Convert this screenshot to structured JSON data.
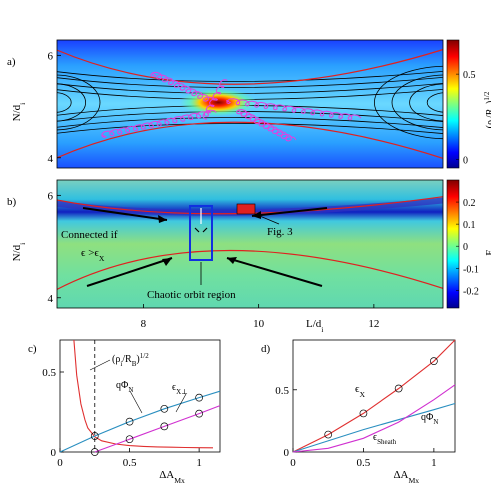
{
  "chart_data": [
    {
      "panel": "a)",
      "type": "heatmap",
      "ylabel": "N/d",
      "ylabel_sub": "i",
      "y_ticks": [
        "6",
        "4"
      ],
      "y_tick_values": [
        6,
        4
      ],
      "ylim": [
        3.8,
        6.3
      ],
      "xlim": [
        6.5,
        13.2
      ],
      "colorbar": {
        "label": "(ρ/R)",
        "label_parts": [
          "(ρ",
          "i",
          "/R",
          "B",
          ")",
          "1/2"
        ],
        "ticks": [
          "0.5",
          "0"
        ],
        "tick_values": [
          0.5,
          0
        ],
        "range": [
          -0.05,
          0.7
        ]
      },
      "overlays": [
        "magnetic field lines (black)",
        "separatrix (red)",
        "particle orbits (magenta)"
      ]
    },
    {
      "panel": "b)",
      "type": "heatmap",
      "ylabel": "N/d",
      "ylabel_sub": "i",
      "y_ticks": [
        "6",
        "4"
      ],
      "y_tick_values": [
        6,
        4
      ],
      "xlabel": "L/d",
      "xlabel_sub": "i",
      "x_ticks": [
        "8",
        "10",
        "12"
      ],
      "x_tick_values": [
        8,
        10,
        12
      ],
      "xlim": [
        6.5,
        13.2
      ],
      "ylim": [
        3.8,
        6.3
      ],
      "colorbar": {
        "label": "E",
        "label_sub": "N",
        "ticks": [
          "0.2",
          "0.1",
          "0",
          "-0.1",
          "-0.2"
        ],
        "tick_values": [
          0.2,
          0.1,
          0,
          -0.1,
          -0.2
        ],
        "range": [
          -0.28,
          0.3
        ]
      },
      "annotations": [
        {
          "text": "Connected if",
          "x": 7.4,
          "y": 5.55
        },
        {
          "text": "Fig. 3",
          "x": 10.1,
          "y": 5.4
        },
        {
          "text": "Chaotic orbit region",
          "x": 8.8,
          "y": 4.1
        }
      ],
      "annotation_math": {
        "eps": "ϵ",
        "gt": " >",
        "sub_x": "X"
      }
    },
    {
      "panel": "c)",
      "type": "line",
      "xlabel": "ΔA",
      "xlabel_sub": "Mx",
      "x_ticks": [
        "0",
        "0.5",
        "1"
      ],
      "x_tick_values": [
        0,
        0.5,
        1
      ],
      "y_ticks": [
        "0",
        "0.5"
      ],
      "y_tick_values": [
        0,
        0.5
      ],
      "xlim": [
        0,
        1.15
      ],
      "ylim": [
        0,
        0.7
      ],
      "series": [
        {
          "name": "(ρ/R)",
          "label_parts": [
            "(ρ",
            "i",
            "/R",
            "B",
            ")",
            "1/2"
          ],
          "color": "#e03030",
          "x": [
            0.1,
            0.12,
            0.15,
            0.18,
            0.2,
            0.25,
            0.3,
            0.4,
            0.5,
            0.6,
            0.7,
            0.8,
            0.9,
            1.0,
            1.1
          ],
          "y": [
            0.7,
            0.48,
            0.3,
            0.2,
            0.15,
            0.095,
            0.07,
            0.05,
            0.04,
            0.035,
            0.032,
            0.03,
            0.028,
            0.027,
            0.026
          ]
        },
        {
          "name": "qΦ",
          "label_parts": [
            "qΦ",
            "N"
          ],
          "color": "#2a8fc0",
          "markers": [
            0.25,
            0.5,
            0.75,
            1.0
          ],
          "x": [
            0,
            0.25,
            0.5,
            0.75,
            1.0,
            1.15
          ],
          "y": [
            0,
            0.1,
            0.19,
            0.27,
            0.34,
            0.38
          ]
        },
        {
          "name": "ϵ",
          "label_parts": [
            "ϵ",
            "X⊥"
          ],
          "color": "#d030d0",
          "markers": [
            0.25,
            0.5,
            0.75,
            1.0
          ],
          "x": [
            0.25,
            0.5,
            0.75,
            1.0,
            1.15
          ],
          "y": [
            0.0,
            0.08,
            0.16,
            0.24,
            0.29
          ]
        }
      ],
      "dashed_vline": 0.25
    },
    {
      "panel": "d)",
      "type": "line",
      "xlabel": "ΔA",
      "xlabel_sub": "Mx",
      "x_ticks": [
        "0",
        "0.5",
        "1"
      ],
      "x_tick_values": [
        0,
        0.5,
        1
      ],
      "y_ticks": [
        "0",
        "0.5"
      ],
      "y_tick_values": [
        0,
        0.5
      ],
      "xlim": [
        0,
        1.15
      ],
      "ylim": [
        0,
        0.9
      ],
      "series": [
        {
          "name": "ϵ",
          "label_parts": [
            "ϵ",
            "X"
          ],
          "color": "#e03030",
          "markers": [
            0.25,
            0.5,
            0.75,
            1.0
          ],
          "x": [
            0,
            0.25,
            0.5,
            0.75,
            1.0,
            1.15
          ],
          "y": [
            0,
            0.14,
            0.31,
            0.51,
            0.73,
            0.9
          ]
        },
        {
          "name": "qΦ",
          "label_parts": [
            "qΦ",
            "N"
          ],
          "color": "#2a8fc0",
          "x": [
            0,
            0.5,
            1.0,
            1.15
          ],
          "y": [
            0,
            0.18,
            0.34,
            0.39
          ]
        },
        {
          "name": "ϵ",
          "label_parts": [
            "ϵ",
            "Sheath"
          ],
          "color": "#d030d0",
          "x": [
            0,
            0.25,
            0.5,
            0.75,
            1.0,
            1.15
          ],
          "y": [
            0,
            0.03,
            0.11,
            0.24,
            0.42,
            0.54
          ]
        }
      ]
    }
  ]
}
